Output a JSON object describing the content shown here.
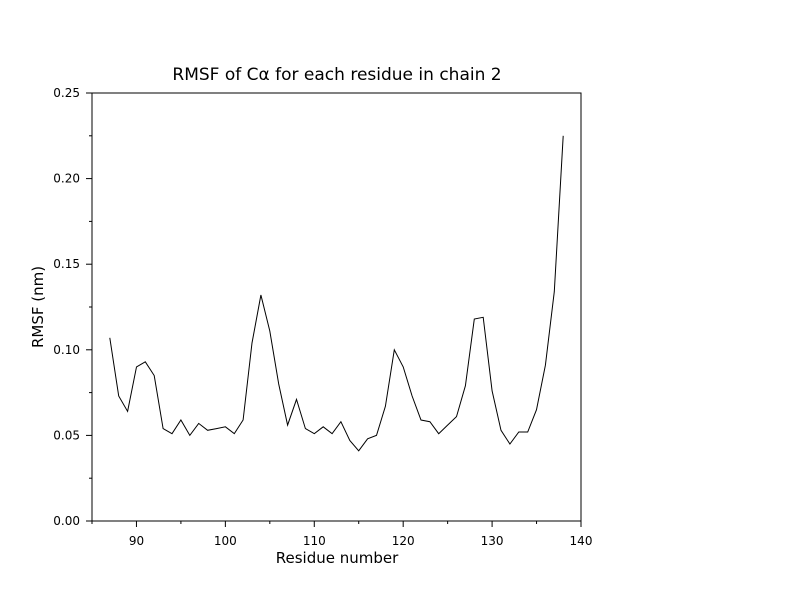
{
  "chart_data": {
    "type": "line",
    "title_prefix": "RMSF of  C",
    "title_symbol": "α",
    "title_suffix": " for each residue in chain 2",
    "xlabel": "Residue number",
    "ylabel": "RMSF (nm)",
    "xlim": [
      85,
      140
    ],
    "ylim": [
      0,
      0.25
    ],
    "xticks": [
      90,
      100,
      110,
      120,
      130,
      140
    ],
    "xtick_labels": [
      "90",
      "100",
      "110",
      "120",
      "130",
      "140"
    ],
    "yticks": [
      0,
      0.05,
      0.1,
      0.15,
      0.2,
      0.25
    ],
    "ytick_labels": [
      "0.00",
      "0.05",
      "0.10",
      "0.15",
      "0.20",
      "0.25"
    ],
    "grid": false,
    "line_color": "#000000",
    "series": [
      {
        "x": [
          87,
          88,
          89,
          90,
          91,
          92,
          93,
          94,
          95,
          96,
          97,
          98,
          99,
          100,
          101,
          102,
          103,
          104,
          105,
          106,
          107,
          108,
          109,
          110,
          111,
          112,
          113,
          114,
          115,
          116,
          117,
          118,
          119,
          120,
          121,
          122,
          123,
          124,
          125,
          126,
          127,
          128,
          129,
          130,
          131,
          132,
          133,
          134,
          135,
          136,
          137,
          138
        ],
        "y": [
          0.107,
          0.073,
          0.064,
          0.09,
          0.093,
          0.085,
          0.054,
          0.051,
          0.059,
          0.05,
          0.057,
          0.053,
          0.054,
          0.055,
          0.051,
          0.059,
          0.104,
          0.132,
          0.111,
          0.08,
          0.056,
          0.071,
          0.054,
          0.051,
          0.055,
          0.051,
          0.058,
          0.047,
          0.041,
          0.048,
          0.05,
          0.067,
          0.1,
          0.09,
          0.073,
          0.059,
          0.058,
          0.051,
          0.056,
          0.061,
          0.079,
          0.118,
          0.119,
          0.076,
          0.053,
          0.045,
          0.052,
          0.052,
          0.065,
          0.091,
          0.134,
          0.225
        ]
      }
    ]
  }
}
